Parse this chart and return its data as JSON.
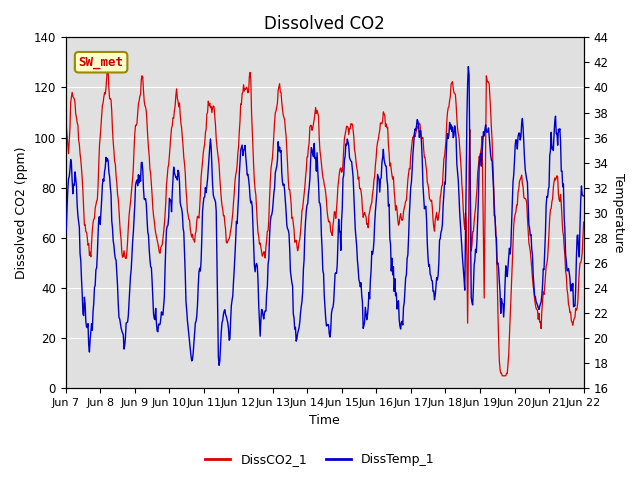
{
  "title": "Dissolved CO2",
  "xlabel": "Time",
  "ylabel_left": "Dissolved CO2 (ppm)",
  "ylabel_right": "Temperature",
  "ylim_left": [
    0,
    140
  ],
  "ylim_right": [
    16,
    44
  ],
  "yticks_left": [
    0,
    20,
    40,
    60,
    80,
    100,
    120,
    140
  ],
  "yticks_right": [
    16,
    18,
    20,
    22,
    24,
    26,
    28,
    30,
    32,
    34,
    36,
    38,
    40,
    42,
    44
  ],
  "xtick_labels": [
    "Jun 7",
    "Jun 8",
    "Jun 9",
    "Jun 10",
    "Jun 11",
    "Jun 12",
    "Jun 13",
    "Jun 14",
    "Jun 15",
    "Jun 16",
    "Jun 17",
    "Jun 18",
    "Jun 19",
    "Jun 20",
    "Jun 21",
    "Jun 22"
  ],
  "legend_label_red": "DissCO2_1",
  "legend_label_blue": "DissTemp_1",
  "annotation_text": "SW_met",
  "annotation_color": "#cc0000",
  "annotation_bg": "#ffffcc",
  "line_red_color": "#dd0000",
  "line_blue_color": "#0000cc",
  "background_color": "#ffffff",
  "plot_bg_color": "#e0e0e0",
  "grid_color": "#ffffff",
  "title_fontsize": 12,
  "axis_fontsize": 9,
  "tick_fontsize": 8.5
}
